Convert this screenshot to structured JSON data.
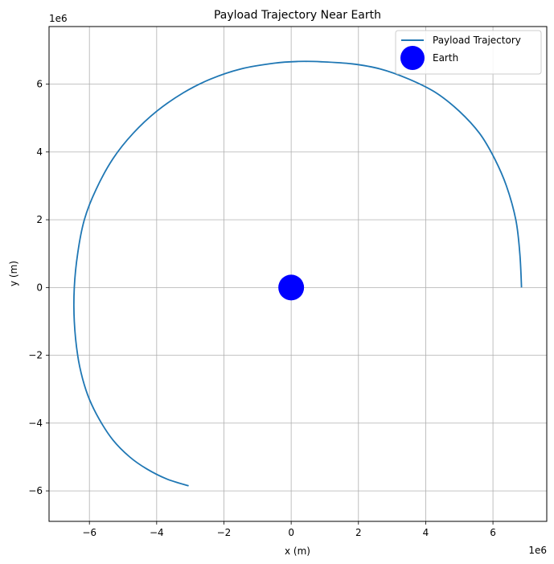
{
  "chart_data": {
    "type": "line",
    "title": "Payload Trajectory Near Earth",
    "xlabel": "x (m)",
    "ylabel": "y (m)",
    "x_offset_label": "1e6",
    "y_offset_label": "1e6",
    "xlim": [
      -7.2,
      7.6
    ],
    "ylim": [
      -6.9,
      7.7
    ],
    "x_ticks": [
      -6,
      -4,
      -2,
      0,
      2,
      4,
      6
    ],
    "y_ticks": [
      -6,
      -4,
      -2,
      0,
      2,
      4,
      6
    ],
    "x_tick_labels": [
      "−6",
      "−4",
      "−2",
      "0",
      "2",
      "4",
      "6"
    ],
    "y_tick_labels": [
      "−6",
      "−4",
      "−2",
      "0",
      "2",
      "4",
      "6"
    ],
    "grid": true,
    "legend": "top-right",
    "unit_scale": "1e6 m",
    "series": [
      {
        "name": "Payload Trajectory",
        "color": "#1f77b4",
        "x": [
          6.85,
          6.8,
          6.68,
          6.4,
          6.05,
          5.6,
          5.0,
          4.3,
          3.5,
          2.65,
          1.8,
          0.9,
          0.2,
          -0.5,
          -1.5,
          -2.4,
          -3.2,
          -4.0,
          -4.7,
          -5.3,
          -5.8,
          -6.15,
          -6.35,
          -6.45,
          -6.45,
          -6.35,
          -6.2,
          -6.0,
          -5.7,
          -5.3,
          -4.8,
          -4.3,
          -3.7,
          -3.05
        ],
        "y": [
          0.0,
          1.0,
          2.0,
          3.0,
          3.8,
          4.55,
          5.2,
          5.75,
          6.15,
          6.45,
          6.6,
          6.66,
          6.67,
          6.62,
          6.45,
          6.15,
          5.75,
          5.2,
          4.55,
          3.8,
          2.9,
          2.0,
          1.0,
          0.0,
          -1.0,
          -2.0,
          -2.7,
          -3.3,
          -3.9,
          -4.5,
          -5.0,
          -5.35,
          -5.65,
          -5.85
        ]
      },
      {
        "name": "Earth",
        "type": "point",
        "color": "#0000ff",
        "x": [
          0
        ],
        "y": [
          0
        ]
      }
    ]
  }
}
